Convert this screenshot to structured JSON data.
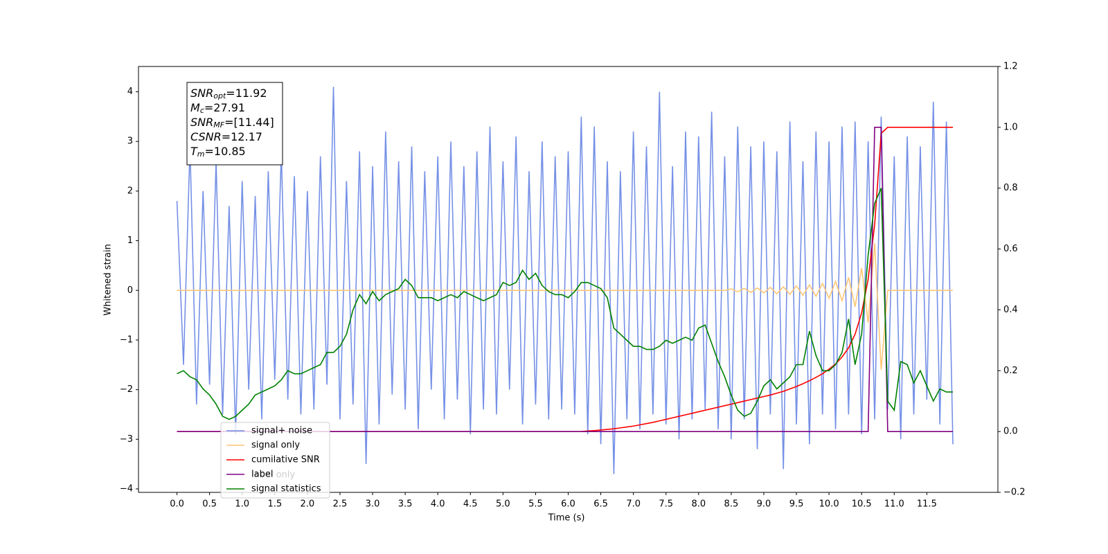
{
  "chart_data": {
    "type": "line",
    "xlabel": "Time (s)",
    "ylabel": "Whitened strain",
    "xlim": [
      -0.59,
      12.59
    ],
    "ylim": [
      -4.07,
      4.51
    ],
    "y2lim": [
      -0.2,
      1.2
    ],
    "xticks": [
      {
        "value": 0,
        "label": "0.0"
      },
      0.5,
      {
        "value": 1,
        "label": "1.0"
      },
      1.5,
      {
        "value": 2,
        "label": "2.0"
      },
      2.5,
      {
        "value": 3,
        "label": "3.0"
      },
      3.5,
      {
        "value": 4,
        "label": "4.0"
      },
      4.5,
      {
        "value": 5,
        "label": "5.0"
      },
      5.5,
      {
        "value": 6,
        "label": "6.0"
      },
      6.5,
      {
        "value": 7,
        "label": "7.0"
      },
      7.5,
      {
        "value": 8,
        "label": "8.0"
      },
      8.5,
      {
        "value": 9,
        "label": "9.0"
      },
      9.5,
      {
        "value": 10,
        "label": "10.0"
      },
      10.5,
      {
        "value": 11,
        "label": "11.0"
      },
      11.5
    ],
    "yticks": [
      {
        "value": -4,
        "label": "−4"
      },
      {
        "value": -3,
        "label": "−3"
      },
      {
        "value": -2,
        "label": "−2"
      },
      {
        "value": -1,
        "label": "−1"
      },
      0,
      1,
      2,
      3,
      4
    ],
    "y2ticks": [
      {
        "value": -0.2,
        "label": "−0.2"
      },
      {
        "value": 0,
        "label": "0.0"
      },
      0.2,
      0.4,
      0.6,
      0.8,
      {
        "value": 1,
        "label": "1.0"
      },
      1.2
    ],
    "legend": "lower left",
    "hidden_legend_entry": "label only",
    "annotation": [
      {
        "symbol": "SNR",
        "subscript": "opt",
        "text": "=11.92"
      },
      {
        "symbol": "M",
        "subscript": "c",
        "text": "=27.91"
      },
      {
        "symbol": "SNR",
        "subscript": "MF",
        "text": "=[11.44]"
      },
      {
        "symbol": "CSNR",
        "text": "=12.17"
      },
      {
        "symbol": "T",
        "subscript": "m",
        "text": "=10.85"
      }
    ],
    "x": [
      0,
      0.1,
      0.2,
      0.3,
      0.4,
      0.5,
      0.6,
      0.7,
      0.8,
      0.9,
      1,
      1.1,
      1.2,
      1.3,
      1.4,
      1.5,
      1.6,
      1.7,
      1.8,
      1.9,
      2,
      2.1,
      2.2,
      2.3,
      2.4,
      2.5,
      2.6,
      2.7,
      2.8,
      2.9,
      3,
      3.1,
      3.2,
      3.3,
      3.4,
      3.5,
      3.6,
      3.7,
      3.8,
      3.9,
      4,
      4.1,
      4.2,
      4.3,
      4.4,
      4.5,
      4.6,
      4.7,
      4.8,
      4.9,
      5,
      5.1,
      5.2,
      5.3,
      5.4,
      5.5,
      5.6,
      5.7,
      5.8,
      5.9,
      6,
      6.1,
      6.2,
      6.3,
      6.4,
      6.5,
      6.6,
      6.7,
      6.8,
      6.9,
      7,
      7.1,
      7.2,
      7.3,
      7.4,
      7.5,
      7.6,
      7.7,
      7.8,
      7.9,
      8,
      8.1,
      8.2,
      8.3,
      8.4,
      8.5,
      8.6,
      8.7,
      8.8,
      8.9,
      9,
      9.1,
      9.2,
      9.3,
      9.4,
      9.5,
      9.6,
      9.7,
      9.8,
      9.9,
      10,
      10.1,
      10.2,
      10.3,
      10.4,
      10.5,
      10.6,
      10.7,
      10.8,
      10.9,
      11,
      11.1,
      11.2,
      11.3,
      11.4,
      11.5,
      11.6,
      11.7,
      11.8,
      11.9
    ],
    "series": [
      {
        "name": "signal+ noise",
        "color": "#7590e6",
        "values": [
          1.8,
          -1.5,
          2.9,
          -2.3,
          2.0,
          -1.9,
          2.6,
          -2.5,
          1.7,
          -2.9,
          2.2,
          -2.0,
          1.9,
          -2.6,
          2.4,
          -1.8,
          2.8,
          -2.2,
          2.3,
          -2.5,
          2.0,
          -2.4,
          2.7,
          -1.9,
          4.1,
          -2.6,
          2.2,
          -2.3,
          2.8,
          -3.5,
          2.5,
          -2.7,
          3.2,
          -2.1,
          2.6,
          -2.4,
          2.9,
          -2.8,
          2.4,
          -2.0,
          2.7,
          -2.6,
          3.0,
          -2.2,
          2.5,
          -2.9,
          2.8,
          -2.4,
          3.3,
          -2.5,
          2.6,
          -2.0,
          3.1,
          -2.7,
          2.4,
          -2.3,
          3.0,
          -2.6,
          2.7,
          -2.4,
          2.8,
          -2.5,
          3.5,
          -2.9,
          3.3,
          -3.1,
          2.6,
          -3.7,
          2.4,
          -2.6,
          3.2,
          -2.8,
          2.9,
          -2.5,
          4.0,
          -2.7,
          2.5,
          -3.0,
          3.2,
          -2.6,
          3.1,
          -2.4,
          3.6,
          -2.8,
          2.7,
          -3.0,
          3.3,
          -2.6,
          2.9,
          -3.2,
          3.0,
          -2.5,
          2.8,
          -3.6,
          3.4,
          -2.7,
          2.6,
          -3.1,
          3.2,
          -2.5,
          3.0,
          -2.8,
          3.3,
          -2.5,
          3.4,
          -2.9,
          3.0,
          -2.6,
          3.5,
          -2.4,
          2.7,
          -3.0,
          3.1,
          -2.5,
          2.9,
          -2.2,
          3.8,
          -2.7,
          3.4,
          -3.1
        ]
      },
      {
        "name": "signal only",
        "color": "#ffc675",
        "values": [
          0,
          0,
          0,
          0,
          0,
          0,
          0,
          0,
          0,
          0,
          0,
          0,
          0,
          0,
          0,
          0,
          0,
          0,
          0,
          0,
          0,
          0,
          0,
          0,
          0,
          0,
          0,
          0,
          0,
          0,
          0,
          0,
          0,
          0,
          0,
          0,
          0,
          0,
          0,
          0,
          0,
          0,
          0,
          0,
          0,
          0,
          0,
          0,
          0,
          0,
          0,
          0,
          0,
          0,
          0,
          0,
          0,
          0,
          0,
          0,
          0,
          0,
          0,
          0,
          0,
          0,
          0,
          0,
          0,
          0,
          0,
          0,
          0,
          0,
          0,
          0,
          0,
          0,
          0,
          0,
          0,
          0,
          0,
          0,
          0,
          0.03,
          -0.03,
          0.04,
          -0.04,
          0.05,
          -0.05,
          0.06,
          -0.07,
          0.07,
          -0.08,
          0.09,
          -0.1,
          0.11,
          -0.12,
          0.14,
          -0.16,
          0.18,
          -0.21,
          0.26,
          -0.33,
          0.45,
          -0.65,
          0.95,
          -1.6,
          0,
          0,
          0,
          0,
          0,
          0,
          0,
          0,
          0,
          0,
          0
        ]
      },
      {
        "name": "cumilative SNR",
        "color": "#ff0000",
        "axis": "y2",
        "values": [
          0,
          0,
          0,
          0,
          0,
          0,
          0,
          0,
          0,
          0,
          0,
          0,
          0,
          0,
          0,
          0,
          0,
          0,
          0,
          0,
          0,
          0,
          0,
          0,
          0,
          0,
          0,
          0,
          0,
          0,
          0,
          0,
          0,
          0,
          0,
          0,
          0,
          0,
          0,
          0,
          0,
          0,
          0,
          0,
          0,
          0,
          0,
          0,
          0,
          0,
          0,
          0,
          0,
          0,
          0,
          0,
          0,
          0,
          0,
          0,
          0,
          0,
          0,
          0.002,
          0.003,
          0.005,
          0.007,
          0.009,
          0.012,
          0.015,
          0.018,
          0.022,
          0.026,
          0.03,
          0.035,
          0.04,
          0.045,
          0.05,
          0.055,
          0.06,
          0.065,
          0.07,
          0.075,
          0.08,
          0.085,
          0.09,
          0.095,
          0.1,
          0.105,
          0.11,
          0.115,
          0.12,
          0.126,
          0.132,
          0.14,
          0.148,
          0.157,
          0.167,
          0.178,
          0.19,
          0.205,
          0.222,
          0.245,
          0.275,
          0.32,
          0.39,
          0.5,
          0.68,
          0.98,
          1,
          1,
          1,
          1,
          1,
          1,
          1,
          1,
          1,
          1,
          1
        ]
      },
      {
        "name": "label",
        "color": "#800080",
        "axis": "y2",
        "values": [
          0,
          0,
          0,
          0,
          0,
          0,
          0,
          0,
          0,
          0,
          0,
          0,
          0,
          0,
          0,
          0,
          0,
          0,
          0,
          0,
          0,
          0,
          0,
          0,
          0,
          0,
          0,
          0,
          0,
          0,
          0,
          0,
          0,
          0,
          0,
          0,
          0,
          0,
          0,
          0,
          0,
          0,
          0,
          0,
          0,
          0,
          0,
          0,
          0,
          0,
          0,
          0,
          0,
          0,
          0,
          0,
          0,
          0,
          0,
          0,
          0,
          0,
          0,
          0,
          0,
          0,
          0,
          0,
          0,
          0,
          0,
          0,
          0,
          0,
          0,
          0,
          0,
          0,
          0,
          0,
          0,
          0,
          0,
          0,
          0,
          0,
          0,
          0,
          0,
          0,
          0,
          0,
          0,
          0,
          0,
          0,
          0,
          0,
          0,
          0,
          0,
          0,
          0,
          0,
          0,
          0,
          0,
          1,
          1,
          0,
          0,
          0,
          0,
          0,
          0,
          0,
          0,
          0,
          0,
          0
        ]
      },
      {
        "name": "signal statistics",
        "color": "#008000",
        "axis": "y2",
        "values": [
          0.19,
          0.2,
          0.18,
          0.17,
          0.14,
          0.12,
          0.09,
          0.05,
          0.04,
          0.05,
          0.07,
          0.09,
          0.12,
          0.13,
          0.14,
          0.15,
          0.17,
          0.2,
          0.19,
          0.19,
          0.2,
          0.21,
          0.22,
          0.26,
          0.26,
          0.28,
          0.32,
          0.4,
          0.45,
          0.42,
          0.46,
          0.43,
          0.45,
          0.46,
          0.47,
          0.5,
          0.48,
          0.44,
          0.44,
          0.44,
          0.43,
          0.44,
          0.45,
          0.44,
          0.46,
          0.45,
          0.44,
          0.43,
          0.44,
          0.45,
          0.49,
          0.48,
          0.49,
          0.53,
          0.5,
          0.52,
          0.48,
          0.46,
          0.45,
          0.45,
          0.44,
          0.46,
          0.49,
          0.49,
          0.48,
          0.47,
          0.44,
          0.34,
          0.32,
          0.3,
          0.28,
          0.28,
          0.27,
          0.27,
          0.28,
          0.3,
          0.29,
          0.3,
          0.31,
          0.3,
          0.34,
          0.35,
          0.29,
          0.23,
          0.18,
          0.12,
          0.07,
          0.05,
          0.06,
          0.1,
          0.15,
          0.17,
          0.14,
          0.16,
          0.18,
          0.22,
          0.22,
          0.33,
          0.25,
          0.2,
          0.2,
          0.22,
          0.26,
          0.37,
          0.22,
          0.32,
          0.58,
          0.75,
          0.8,
          0.1,
          0.07,
          0.23,
          0.22,
          0.16,
          0.2,
          0.15,
          0.1,
          0.14,
          0.13,
          0.13
        ]
      }
    ]
  }
}
